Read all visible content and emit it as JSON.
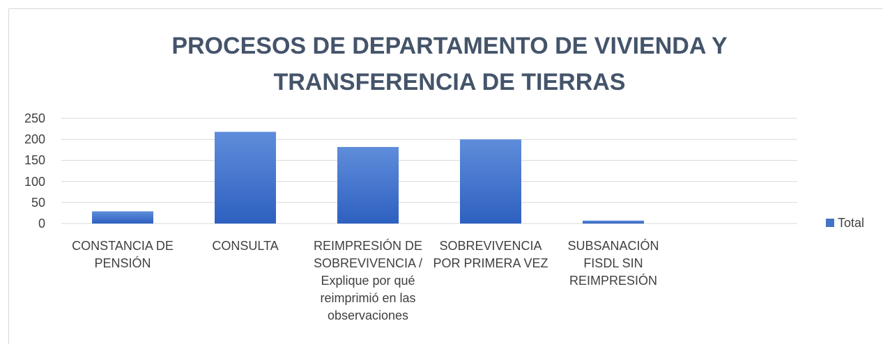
{
  "chart_data": {
    "type": "bar",
    "title": "PROCESOS DE DEPARTAMENTO DE VIVIENDA Y TRANSFERENCIA DE TIERRAS",
    "categories": [
      "CONSTANCIA DE PENSIÓN",
      "CONSULTA",
      "REIMPRESIÓN DE SOBREVIVENCIA / Explique por qué reimprimió en las observaciones",
      "SOBREVIVENCIA POR PRIMERA VEZ",
      "SUBSANACIÓN FISDL SIN REIMPRESIÓN",
      null
    ],
    "series": [
      {
        "name": "Total",
        "color": "#4472c4",
        "values": [
          29,
          218,
          182,
          200,
          7,
          null
        ]
      }
    ],
    "ylim": [
      0,
      250
    ],
    "yticks": [
      0,
      50,
      100,
      150,
      200,
      250
    ],
    "grid": true,
    "legend": "right"
  }
}
